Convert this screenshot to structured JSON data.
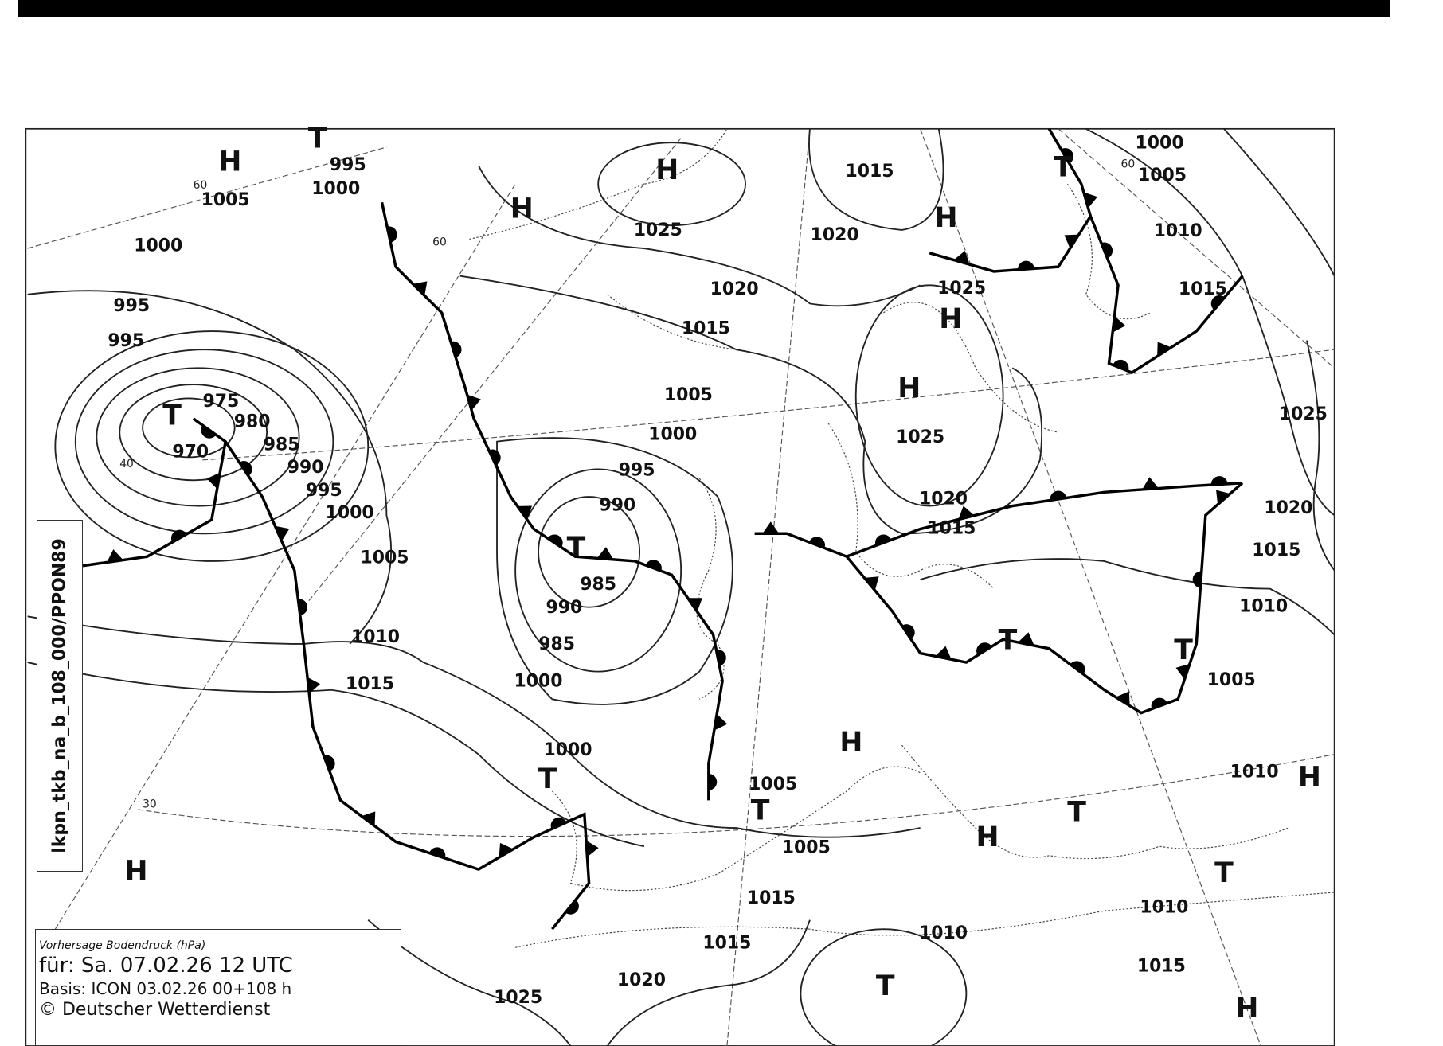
{
  "map": {
    "legend": {
      "title": "Vorhersage Bodendruck (hPa)",
      "for": "für:  Sa. 07.02.26  12 UTC",
      "basis": "Basis: ICON  03.02.26 00+108 h",
      "copyright": "© Deutscher Wetterdienst"
    },
    "product_id": "lkpn_tkb_na_b_108_000/PPON89",
    "pressure_labels": [
      "H",
      "T",
      "995",
      "1000",
      "1005",
      "1000",
      "995",
      "995",
      "975",
      "T",
      "980",
      "985",
      "970",
      "990",
      "995",
      "1000",
      "1005",
      "1010",
      "1015",
      "H",
      "H",
      "1025",
      "1020",
      "1015",
      "1005",
      "1000",
      "995",
      "990",
      "T",
      "985",
      "990",
      "985",
      "1000",
      "1000",
      "T",
      "1005",
      "T",
      "1005",
      "H",
      "1015",
      "1020",
      "H",
      "1025",
      "H",
      "H",
      "1025",
      "1020",
      "1015",
      "1000",
      "T",
      "1005",
      "1010",
      "1015",
      "1025",
      "1020",
      "1015",
      "1010",
      "T",
      "1005",
      "T",
      "1010",
      "H",
      "T",
      "H",
      "T",
      "1010",
      "1010",
      "1015",
      "T",
      "H",
      "1015",
      "1020",
      "1025",
      "1015",
      "H"
    ],
    "latitude_labels": [
      "60",
      "40",
      "30",
      "60",
      "60"
    ],
    "colors": {
      "ink": "#000000",
      "paper": "#ffffff"
    }
  }
}
